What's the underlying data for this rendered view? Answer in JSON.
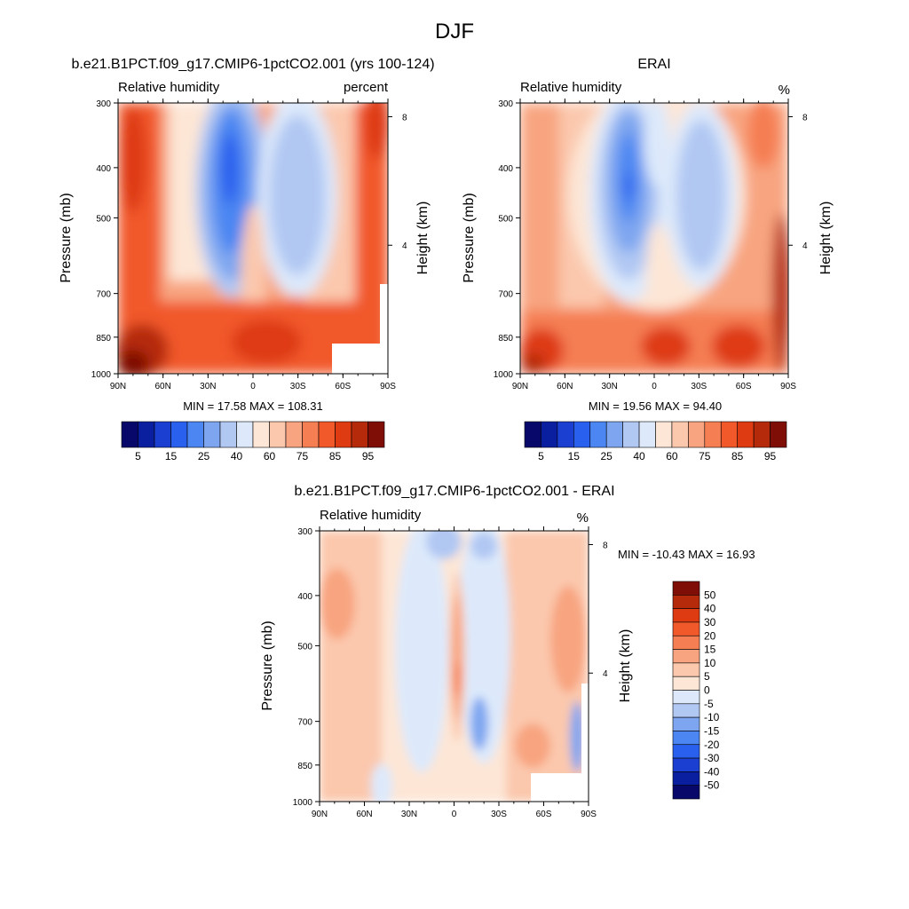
{
  "figure": {
    "title": "DJF"
  },
  "chart_data": [
    {
      "id": "model",
      "type": "contour",
      "title": "b.e21.B1PCT.f09_g17.CMIP6-1pctCO2.001 (yrs 100-124)",
      "left_label": "Relative humidity",
      "right_label": "percent",
      "ylabel": "Pressure (mb)",
      "ylabel_right": "Height (km)",
      "x_ticks": [
        "90N",
        "60N",
        "30N",
        "0",
        "30S",
        "60S",
        "90S"
      ],
      "y_ticks": [
        "300",
        "400",
        "500",
        "700",
        "850",
        "1000"
      ],
      "y_right_ticks": [
        "8",
        "4"
      ],
      "stats": "MIN =  17.58  MAX = 108.31",
      "colorbar_labels": [
        "5",
        "15",
        "25",
        "40",
        "60",
        "75",
        "85",
        "95"
      ]
    },
    {
      "id": "obs",
      "type": "contour",
      "title": "ERAI",
      "left_label": "Relative humidity",
      "right_label": "%",
      "ylabel": "Pressure (mb)",
      "ylabel_right": "Height (km)",
      "x_ticks": [
        "90N",
        "60N",
        "30N",
        "0",
        "30S",
        "60S",
        "90S"
      ],
      "y_ticks": [
        "300",
        "400",
        "500",
        "700",
        "850",
        "1000"
      ],
      "y_right_ticks": [
        "8",
        "4"
      ],
      "stats": "MIN =  19.56  MAX =  94.40",
      "colorbar_labels": [
        "5",
        "15",
        "25",
        "40",
        "60",
        "75",
        "85",
        "95"
      ]
    },
    {
      "id": "diff",
      "type": "contour",
      "title": "b.e21.B1PCT.f09_g17.CMIP6-1pctCO2.001 - ERAI",
      "left_label": "Relative humidity",
      "right_label": "%",
      "ylabel": "Pressure (mb)",
      "ylabel_right": "Height (km)",
      "x_ticks": [
        "90N",
        "60N",
        "30N",
        "0",
        "30S",
        "60S",
        "90S"
      ],
      "y_ticks": [
        "300",
        "400",
        "500",
        "700",
        "850",
        "1000"
      ],
      "y_right_ticks": [
        "8",
        "4"
      ],
      "stats": "MIN = -10.43  MAX =  16.93",
      "colorbar_labels": [
        "50",
        "40",
        "30",
        "20",
        "15",
        "10",
        "5",
        "0",
        "-5",
        "-10",
        "-15",
        "-20",
        "-30",
        "-40",
        "-50"
      ]
    }
  ],
  "colors": {
    "abs_scale": [
      "#08086b",
      "#0a1fa0",
      "#1b3fd0",
      "#2a60ee",
      "#4c86f2",
      "#7ea6f0",
      "#b1c8f3",
      "#dde9fb",
      "#fde6d6",
      "#fbc8ad",
      "#f8a480",
      "#f57e52",
      "#f1592b",
      "#de3b12",
      "#b52a0b",
      "#7e0e06"
    ],
    "diff_scale": [
      "#7e0e06",
      "#b52a0b",
      "#de3b12",
      "#f1592b",
      "#f57e52",
      "#f8a480",
      "#fbc8ad",
      "#fde6d6",
      "#dde9fb",
      "#b1c8f3",
      "#7ea6f0",
      "#4c86f2",
      "#2a60ee",
      "#1b3fd0",
      "#0a1fa0",
      "#08086b"
    ]
  }
}
